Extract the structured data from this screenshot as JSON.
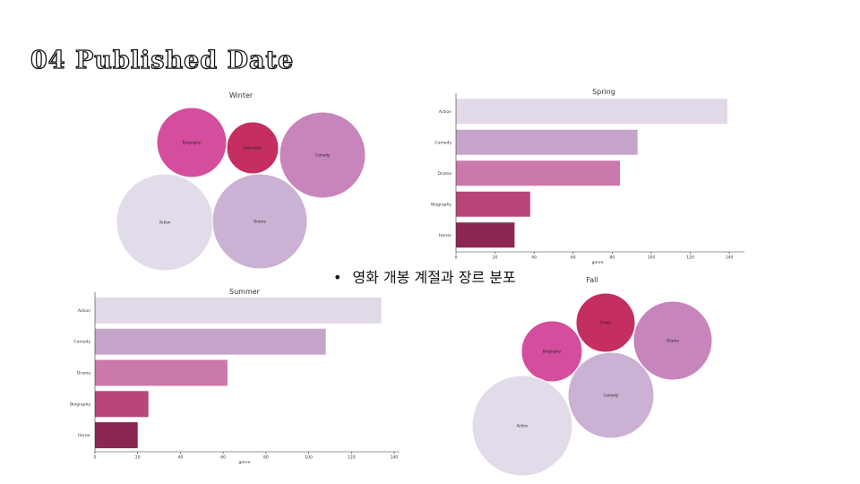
{
  "slide": {
    "title": "04 Published Date",
    "bullet": "영화 개봉 계절과 장르 분포"
  },
  "chart_data": [
    {
      "type": "bubble",
      "title": "Winter",
      "bubbles": [
        {
          "label": "Biography",
          "color": "#d44e9d"
        },
        {
          "label": "Animation",
          "color": "#c42e61"
        },
        {
          "label": "Comedy",
          "color": "#c885bc"
        },
        {
          "label": "Action",
          "color": "#e2dbe9"
        },
        {
          "label": "Drama",
          "color": "#cbb2d4"
        }
      ]
    },
    {
      "type": "bar",
      "orientation": "horizontal",
      "title": "Spring",
      "categories": [
        "Action",
        "Comedy",
        "Drama",
        "Biography",
        "Horror"
      ],
      "values": [
        139,
        93,
        84,
        38,
        30
      ],
      "colors": [
        "#e1d9e8",
        "#c4a5c9",
        "#cb79ac",
        "#b9447a",
        "#8b2650"
      ],
      "xlabel": "genre",
      "xlim": [
        0,
        145
      ],
      "xticks": [
        0,
        20,
        40,
        60,
        80,
        100,
        120,
        140
      ]
    },
    {
      "type": "bar",
      "orientation": "horizontal",
      "title": "Summer",
      "categories": [
        "Action",
        "Comedy",
        "Drama",
        "Biography",
        "Horror"
      ],
      "values": [
        134,
        108,
        62,
        25,
        20
      ],
      "colors": [
        "#e1d9e8",
        "#c4a5c9",
        "#cb79ac",
        "#b9447a",
        "#8b2650"
      ],
      "xlabel": "genre",
      "xlim": [
        0,
        140
      ],
      "xticks": [
        0,
        20,
        40,
        60,
        80,
        100,
        120,
        140
      ]
    },
    {
      "type": "bubble",
      "title": "Fall",
      "bubbles": [
        {
          "label": "Crime",
          "color": "#c42e61"
        },
        {
          "label": "Biography",
          "color": "#d44e9d"
        },
        {
          "label": "Drama",
          "color": "#c885bc"
        },
        {
          "label": "Comedy",
          "color": "#cbb2d4"
        },
        {
          "label": "Action",
          "color": "#e2dbe9"
        }
      ]
    }
  ]
}
